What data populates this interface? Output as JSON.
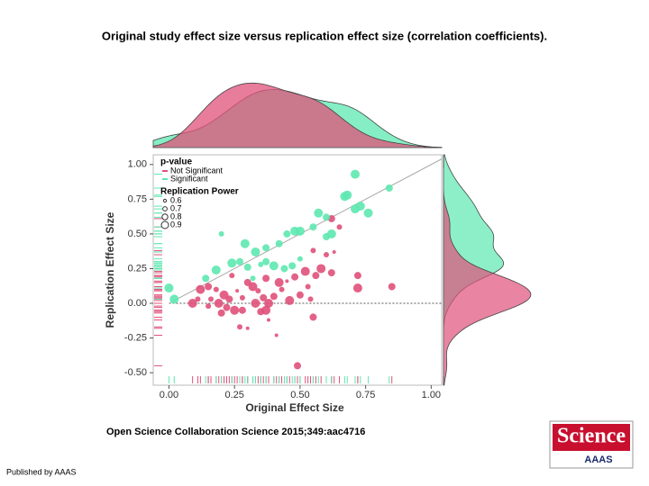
{
  "chart_data": {
    "type": "scatter",
    "title": "Original study effect size versus replication effect size (correlation coefficients).",
    "x_label": "Original Effect Size",
    "y_label": "Replication Effect Size",
    "xlim": [
      -0.06,
      1.04
    ],
    "ylim": [
      -0.59,
      1.07
    ],
    "xticks": [
      {
        "value": 0,
        "label": "0.00"
      },
      {
        "value": 0.25,
        "label": "0.25"
      },
      {
        "value": 0.5,
        "label": "0.50"
      },
      {
        "value": 0.75,
        "label": "0.75"
      },
      {
        "value": 1,
        "label": "1.00"
      }
    ],
    "yticks": [
      {
        "value": -0.5,
        "label": "-0.50"
      },
      {
        "value": -0.25,
        "label": "-0.25"
      },
      {
        "value": 0,
        "label": "0.00"
      },
      {
        "value": 0.25,
        "label": "0.25"
      },
      {
        "value": 0.5,
        "label": "0.50"
      },
      {
        "value": 0.75,
        "label": "0.75"
      },
      {
        "value": 1,
        "label": "1.00"
      }
    ],
    "legend_title": "p-value",
    "size_legend": {
      "title": "Replication Power",
      "values": [
        0.6,
        0.7,
        0.8,
        0.9
      ]
    },
    "series": [
      {
        "name": "Not Significant",
        "color": "#e0507a",
        "x": [
          0.12,
          0.15,
          0.18,
          0.21,
          0.23,
          0.16,
          0.19,
          0.22,
          0.25,
          0.15,
          0.2,
          0.26,
          0.28,
          0.3,
          0.32,
          0.34,
          0.36,
          0.38,
          0.37,
          0.4,
          0.43,
          0.45,
          0.48,
          0.46,
          0.5,
          0.54,
          0.55,
          0.53,
          0.56,
          0.58,
          0.62,
          0.6,
          0.63,
          0.65,
          0.62,
          0.55,
          0.72,
          0.72,
          0.85,
          0.49,
          0.38,
          0.41,
          0.28,
          0.33,
          0.11,
          0.09,
          0.24,
          0.27,
          0.3,
          0.35,
          0.42,
          0.52,
          0.37
        ],
        "y": [
          0.1,
          0.12,
          0.1,
          0.06,
          0.03,
          0.03,
          0.0,
          -0.03,
          -0.05,
          -0.02,
          -0.07,
          0.09,
          0.04,
          0.15,
          0.12,
          0.09,
          0.04,
          0.0,
          -0.05,
          0.05,
          0.1,
          0.16,
          0.19,
          0.02,
          0.06,
          0.03,
          -0.1,
          0.12,
          0.2,
          0.25,
          0.22,
          0.35,
          0.37,
          0.55,
          0.61,
          0.38,
          0.2,
          0.11,
          0.12,
          -0.45,
          -0.12,
          -0.23,
          -0.05,
          0.0,
          0.03,
          0.0,
          0.2,
          -0.17,
          -0.18,
          -0.06,
          0.15,
          0.23,
          0.18
        ],
        "power": [
          0.9,
          0.8,
          0.7,
          0.9,
          0.8,
          0.7,
          0.9,
          0.8,
          0.9,
          0.7,
          0.8,
          0.6,
          0.7,
          0.8,
          0.9,
          0.7,
          0.8,
          0.9,
          0.9,
          0.8,
          0.7,
          0.6,
          0.8,
          0.9,
          0.8,
          0.7,
          0.8,
          0.7,
          0.8,
          0.9,
          0.8,
          0.7,
          0.6,
          0.7,
          0.8,
          0.7,
          0.8,
          0.9,
          0.8,
          0.8,
          0.6,
          0.6,
          0.8,
          0.9,
          0.7,
          0.9,
          0.7,
          0.7,
          0.6,
          0.8,
          0.9,
          0.9,
          0.8
        ]
      },
      {
        "name": "Significant",
        "color": "#5de8b0",
        "x": [
          0.2,
          0.29,
          0.37,
          0.45,
          0.48,
          0.5,
          0.55,
          0.57,
          0.6,
          0.62,
          0.67,
          0.68,
          0.71,
          0.73,
          0.76,
          0.71,
          0.84,
          0.6,
          0.42,
          0.33,
          0.37,
          0.35,
          0.27,
          0.18,
          0.4,
          0.3,
          0.02,
          0.0,
          0.14,
          0.32,
          0.44,
          0.47,
          0.24,
          0.5
        ],
        "y": [
          0.5,
          0.43,
          0.4,
          0.5,
          0.52,
          0.52,
          0.55,
          0.65,
          0.62,
          0.5,
          0.77,
          0.78,
          0.68,
          0.7,
          0.65,
          0.93,
          0.83,
          0.48,
          0.43,
          0.37,
          0.3,
          0.28,
          0.3,
          0.24,
          0.27,
          0.26,
          0.03,
          0.11,
          0.18,
          0.18,
          0.25,
          0.27,
          0.29,
          0.32
        ],
        "power": [
          0.7,
          0.9,
          0.8,
          0.8,
          0.9,
          0.9,
          0.8,
          0.9,
          0.8,
          0.9,
          0.9,
          0.9,
          0.9,
          0.9,
          0.9,
          0.9,
          0.8,
          0.8,
          0.8,
          0.9,
          0.8,
          0.7,
          0.8,
          0.9,
          0.9,
          0.8,
          0.9,
          0.9,
          0.8,
          0.7,
          0.8,
          0.8,
          0.9,
          0.7
        ]
      }
    ]
  },
  "source": "Open Science Collaboration Science 2015;349:aac4716",
  "footer": "Published by AAAS",
  "logo": {
    "title": "Science",
    "subtitle": "AAAS"
  }
}
